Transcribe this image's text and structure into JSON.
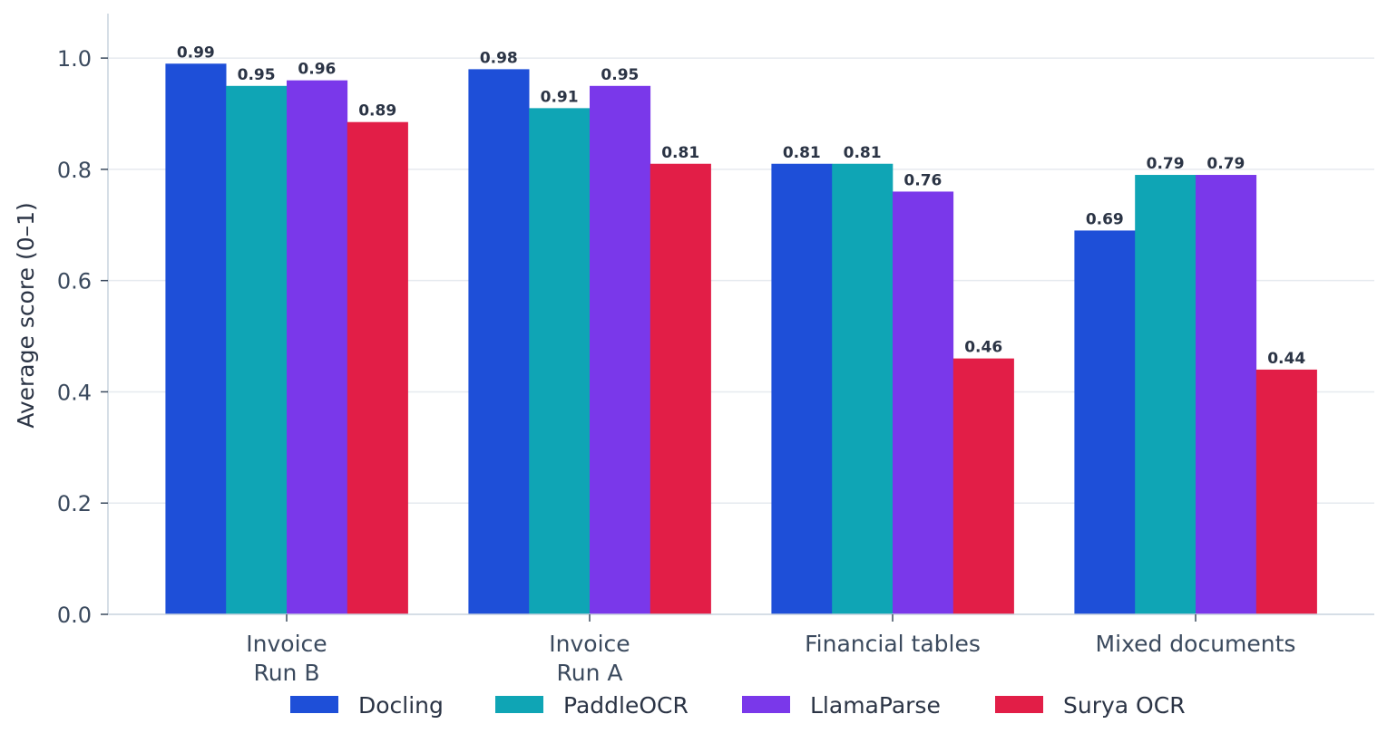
{
  "chart_data": {
    "type": "bar",
    "categories": [
      [
        "Invoice",
        "Run B"
      ],
      [
        "Invoice",
        "Run A"
      ],
      [
        "Financial tables"
      ],
      [
        "Mixed documents"
      ]
    ],
    "series": [
      {
        "name": "Docling",
        "color": "#1e4fd8",
        "values": [
          0.99,
          0.98,
          0.81,
          0.69
        ],
        "labels": [
          "0.99",
          "0.98",
          "0.81",
          "0.69"
        ]
      },
      {
        "name": "PaddleOCR",
        "color": "#0fa5b5",
        "values": [
          0.95,
          0.91,
          0.81,
          0.79
        ],
        "labels": [
          "0.95",
          "0.91",
          "0.81",
          "0.79"
        ]
      },
      {
        "name": "LlamaParse",
        "color": "#7a38ea",
        "values": [
          0.96,
          0.95,
          0.76,
          0.79
        ],
        "labels": [
          "0.96",
          "0.95",
          "0.76",
          "0.79"
        ]
      },
      {
        "name": "Surya OCR",
        "color": "#e21e47",
        "values": [
          0.885,
          0.81,
          0.46,
          0.44
        ],
        "labels": [
          "0.89",
          "0.81",
          "0.46",
          "0.44"
        ]
      }
    ],
    "ylabel": "Average score (0–1)",
    "ylim": [
      0,
      1.08
    ],
    "yticks": [
      0.0,
      0.2,
      0.4,
      0.6,
      0.8,
      1.0
    ],
    "ytick_labels": [
      "0.0",
      "0.2",
      "0.4",
      "0.6",
      "0.8",
      "1.0"
    ],
    "grid": "horizontal",
    "legend_position": "bottom"
  }
}
